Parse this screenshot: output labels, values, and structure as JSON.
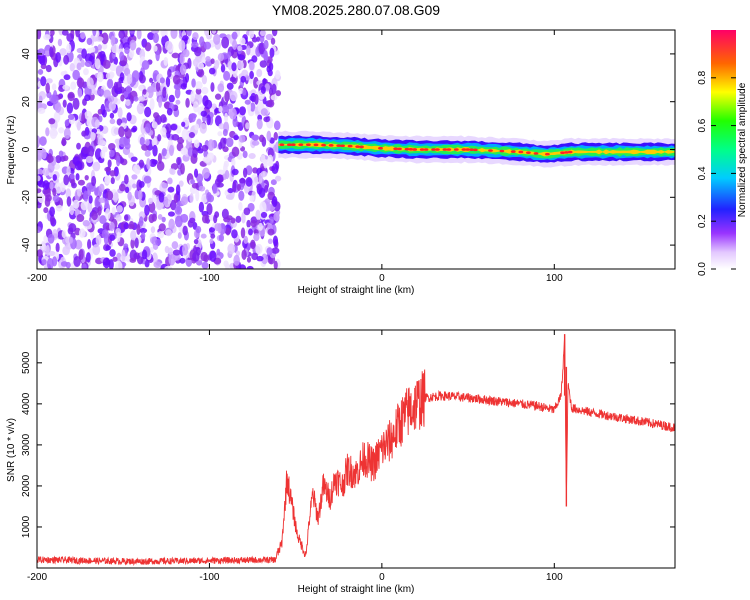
{
  "title": "YM08.2025.280.07.08.G09",
  "colors": {
    "snr_line": "#ee3333",
    "spectrum_noise": "#8a2be2",
    "spectrum_band": "#3300ff",
    "spectrum_peak": "#ff2222"
  },
  "chart_data": [
    {
      "type": "heatmap",
      "xlabel": "Height of straight line (km)",
      "ylabel": "Frequency (Hz)",
      "xlim": [
        -200,
        170
      ],
      "ylim": [
        -50,
        50
      ],
      "x_ticks": [
        -200,
        -100,
        0,
        100
      ],
      "y_ticks": [
        -40,
        -20,
        0,
        20,
        40
      ],
      "noise_region_x": [
        -200,
        -60
      ],
      "signal_region_x": [
        -60,
        170
      ],
      "signal_center_hz": [
        {
          "x": -60,
          "y": 2
        },
        {
          "x": -40,
          "y": 2
        },
        {
          "x": -20,
          "y": 1.5
        },
        {
          "x": 0,
          "y": 0.5
        },
        {
          "x": 20,
          "y": 0
        },
        {
          "x": 50,
          "y": 0
        },
        {
          "x": 80,
          "y": -1
        },
        {
          "x": 95,
          "y": -2
        },
        {
          "x": 110,
          "y": -1
        },
        {
          "x": 140,
          "y": -1
        },
        {
          "x": 170,
          "y": -1
        }
      ],
      "colorbar": {
        "label": "Normalized spectral amplitude",
        "range": [
          0,
          1
        ],
        "ticks": [
          "0.0",
          "0.2",
          "0.4",
          "0.6",
          "0.8"
        ]
      },
      "grid": false
    },
    {
      "type": "line",
      "xlabel": "Height of straight line (km)",
      "ylabel": "SNR (10 * v/v)",
      "xlim": [
        -200,
        170
      ],
      "ylim": [
        0,
        5800
      ],
      "x_ticks": [
        -200,
        -100,
        0,
        100
      ],
      "y_ticks": [
        1000,
        2000,
        3000,
        4000,
        5000
      ],
      "series": [
        {
          "points": [
            [
              -200,
              200
            ],
            [
              -180,
              190
            ],
            [
              -160,
              170
            ],
            [
              -140,
              160
            ],
            [
              -120,
              170
            ],
            [
              -100,
              180
            ],
            [
              -80,
              190
            ],
            [
              -62,
              200
            ],
            [
              -58,
              600
            ],
            [
              -55,
              2200
            ],
            [
              -52,
              1500
            ],
            [
              -49,
              800
            ],
            [
              -46,
              500
            ],
            [
              -44,
              300
            ],
            [
              -42,
              1200
            ],
            [
              -40,
              1800
            ],
            [
              -37,
              1200
            ],
            [
              -34,
              2000
            ],
            [
              -30,
              1700
            ],
            [
              -27,
              2200
            ],
            [
              -23,
              2000
            ],
            [
              -20,
              2400
            ],
            [
              -15,
              2300
            ],
            [
              -10,
              2700
            ],
            [
              -5,
              2500
            ],
            [
              0,
              2900
            ],
            [
              5,
              3100
            ],
            [
              10,
              3500
            ],
            [
              15,
              3800
            ],
            [
              20,
              4000
            ],
            [
              25,
              4150
            ],
            [
              35,
              4200
            ],
            [
              50,
              4150
            ],
            [
              70,
              4050
            ],
            [
              90,
              3950
            ],
            [
              100,
              3850
            ],
            [
              104,
              4200
            ],
            [
              106,
              5600
            ],
            [
              107,
              1600
            ],
            [
              108,
              4500
            ],
            [
              110,
              3900
            ],
            [
              120,
              3800
            ],
            [
              140,
              3650
            ],
            [
              160,
              3500
            ],
            [
              170,
              3420
            ]
          ]
        }
      ],
      "annotations": [
        {
          "x": 106,
          "y": 5700,
          "kind": "spike-max"
        },
        {
          "x": 107,
          "y": 1500,
          "kind": "spike-min"
        }
      ],
      "grid": false
    }
  ]
}
